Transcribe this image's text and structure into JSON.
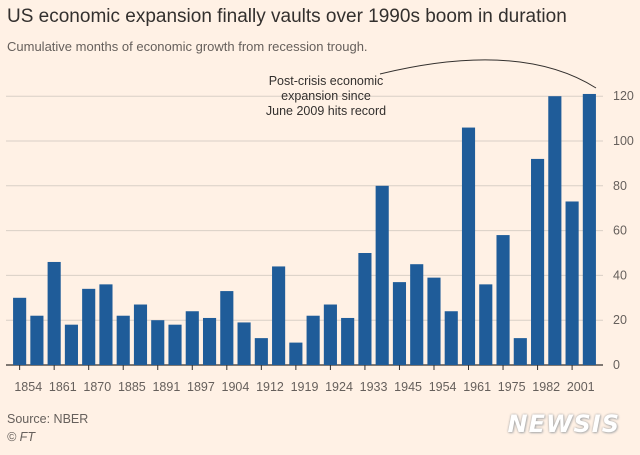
{
  "title": "US economic expansion finally vaults over 1990s boom in duration",
  "subtitle": "Cumulative months of economic growth from recession trough.",
  "source": "Source: NBER",
  "credit": "© FT",
  "watermark": "NEWSIS",
  "annotation": {
    "line1": "Post-crisis economic",
    "line2": "expansion since",
    "line3": "June 2009 hits record"
  },
  "colors": {
    "background": "#fff1e5",
    "bar": "#1f5c99",
    "grid": "#d9cfc6",
    "axis": "#33302e"
  },
  "chart_data": {
    "type": "bar",
    "title": "US economic expansion finally vaults over 1990s boom in duration",
    "subtitle": "Cumulative months of economic growth from recession trough.",
    "xlabel": "",
    "ylabel": "",
    "ylim": [
      0,
      125
    ],
    "yticks": [
      0,
      20,
      40,
      60,
      80,
      100,
      120
    ],
    "y_axis_side": "right",
    "grid": true,
    "xtick_labels": [
      "1854",
      "1861",
      "1870",
      "1885",
      "1891",
      "1897",
      "1904",
      "1912",
      "1919",
      "1924",
      "1933",
      "1945",
      "1954",
      "1961",
      "1975",
      "1982",
      "2001"
    ],
    "values": [
      30,
      22,
      46,
      18,
      34,
      36,
      22,
      27,
      20,
      18,
      24,
      21,
      33,
      19,
      12,
      44,
      10,
      22,
      27,
      21,
      50,
      80,
      37,
      45,
      39,
      24,
      106,
      36,
      58,
      12,
      92,
      120,
      73,
      121
    ]
  }
}
